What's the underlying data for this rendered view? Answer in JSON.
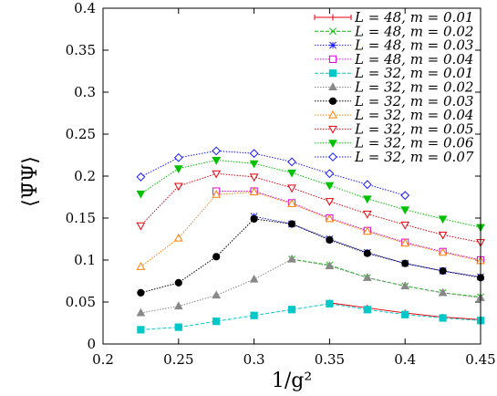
{
  "chart_data": {
    "type": "line",
    "xlabel": "1/g²",
    "ylabel": "⟨Ψ̄Ψ⟩",
    "xlim": [
      0.2,
      0.45
    ],
    "ylim": [
      0,
      0.4
    ],
    "xticks": [
      "0.2",
      "0.25",
      "0.3",
      "0.35",
      "0.4",
      "0.45"
    ],
    "yticks": [
      "0",
      "0.05",
      "0.1",
      "0.15",
      "0.2",
      "0.25",
      "0.3",
      "0.35",
      "0.4"
    ],
    "grid": false,
    "legend_position": "top-right",
    "series": [
      {
        "name": "L = 48, m = 0.01",
        "color": "#e8000b",
        "marker": "plus",
        "style": "solid",
        "x": [
          0.35,
          0.375,
          0.4,
          0.425,
          0.45
        ],
        "y": [
          0.049,
          0.043,
          0.037,
          0.032,
          0.029
        ]
      },
      {
        "name": "L = 48, m = 0.02",
        "color": "#00c000",
        "marker": "cross",
        "style": "dashed",
        "x": [
          0.325,
          0.35,
          0.375,
          0.4,
          0.425,
          0.45
        ],
        "y": [
          0.101,
          0.094,
          0.079,
          0.069,
          0.061,
          0.056
        ]
      },
      {
        "name": "L = 48, m = 0.03",
        "color": "#1a1aff",
        "marker": "star",
        "style": "dotted",
        "x": [
          0.3,
          0.325,
          0.35,
          0.375,
          0.4,
          0.425,
          0.45
        ],
        "y": [
          0.152,
          0.143,
          0.125,
          0.109,
          0.096,
          0.087,
          0.08
        ]
      },
      {
        "name": "L = 48, m = 0.04",
        "color": "#e000e0",
        "marker": "square",
        "style": "dotted",
        "x": [
          0.275,
          0.3,
          0.325,
          0.35,
          0.375,
          0.4,
          0.425,
          0.45
        ],
        "y": [
          0.182,
          0.182,
          0.168,
          0.15,
          0.135,
          0.121,
          0.11,
          0.1
        ]
      },
      {
        "name": "L = 32, m = 0.01",
        "color": "#00c8c8",
        "marker": "filled-square",
        "style": "dashed",
        "x": [
          0.225,
          0.25,
          0.275,
          0.3,
          0.325,
          0.35,
          0.375,
          0.4,
          0.425,
          0.45
        ],
        "y": [
          0.017,
          0.02,
          0.027,
          0.034,
          0.041,
          0.048,
          0.041,
          0.035,
          0.031,
          0.028
        ]
      },
      {
        "name": "L = 32, m = 0.02",
        "color": "#888888",
        "marker": "filled-triangle",
        "style": "dotted",
        "x": [
          0.225,
          0.25,
          0.275,
          0.3,
          0.325,
          0.35,
          0.375,
          0.4,
          0.425,
          0.45
        ],
        "y": [
          0.037,
          0.045,
          0.058,
          0.077,
          0.101,
          0.093,
          0.079,
          0.069,
          0.061,
          0.055
        ]
      },
      {
        "name": "L = 32, m = 0.03",
        "color": "#000000",
        "marker": "filled-circle",
        "style": "dotted",
        "x": [
          0.225,
          0.25,
          0.275,
          0.3,
          0.325,
          0.35,
          0.375,
          0.4,
          0.425,
          0.45
        ],
        "y": [
          0.061,
          0.073,
          0.104,
          0.149,
          0.143,
          0.124,
          0.108,
          0.096,
          0.087,
          0.079
        ]
      },
      {
        "name": "L = 32, m = 0.04",
        "color": "#ff7f00",
        "marker": "triangle",
        "style": "dotted",
        "x": [
          0.225,
          0.25,
          0.275,
          0.3,
          0.325,
          0.35,
          0.375,
          0.4,
          0.425,
          0.45
        ],
        "y": [
          0.092,
          0.126,
          0.178,
          0.181,
          0.167,
          0.149,
          0.134,
          0.12,
          0.109,
          0.099
        ]
      },
      {
        "name": "L = 32, m = 0.05",
        "color": "#e8000b",
        "marker": "triangle-down",
        "style": "dotted",
        "x": [
          0.225,
          0.25,
          0.275,
          0.3,
          0.325,
          0.35,
          0.375,
          0.4,
          0.425,
          0.45
        ],
        "y": [
          0.141,
          0.188,
          0.203,
          0.199,
          0.186,
          0.17,
          0.155,
          0.142,
          0.13,
          0.121
        ]
      },
      {
        "name": "L = 32, m = 0.06",
        "color": "#00c000",
        "marker": "filled-triangle-down",
        "style": "dotted",
        "x": [
          0.225,
          0.25,
          0.275,
          0.3,
          0.325,
          0.35,
          0.375,
          0.4,
          0.425,
          0.45
        ],
        "y": [
          0.179,
          0.209,
          0.219,
          0.215,
          0.204,
          0.189,
          0.173,
          0.16,
          0.149,
          0.139
        ]
      },
      {
        "name": "L = 32, m = 0.07",
        "color": "#1a1aff",
        "marker": "diamond",
        "style": "dotted",
        "x": [
          0.225,
          0.25,
          0.275,
          0.3,
          0.325,
          0.35,
          0.375,
          0.4
        ],
        "y": [
          0.199,
          0.222,
          0.23,
          0.227,
          0.217,
          0.203,
          0.19,
          0.177
        ]
      }
    ]
  }
}
